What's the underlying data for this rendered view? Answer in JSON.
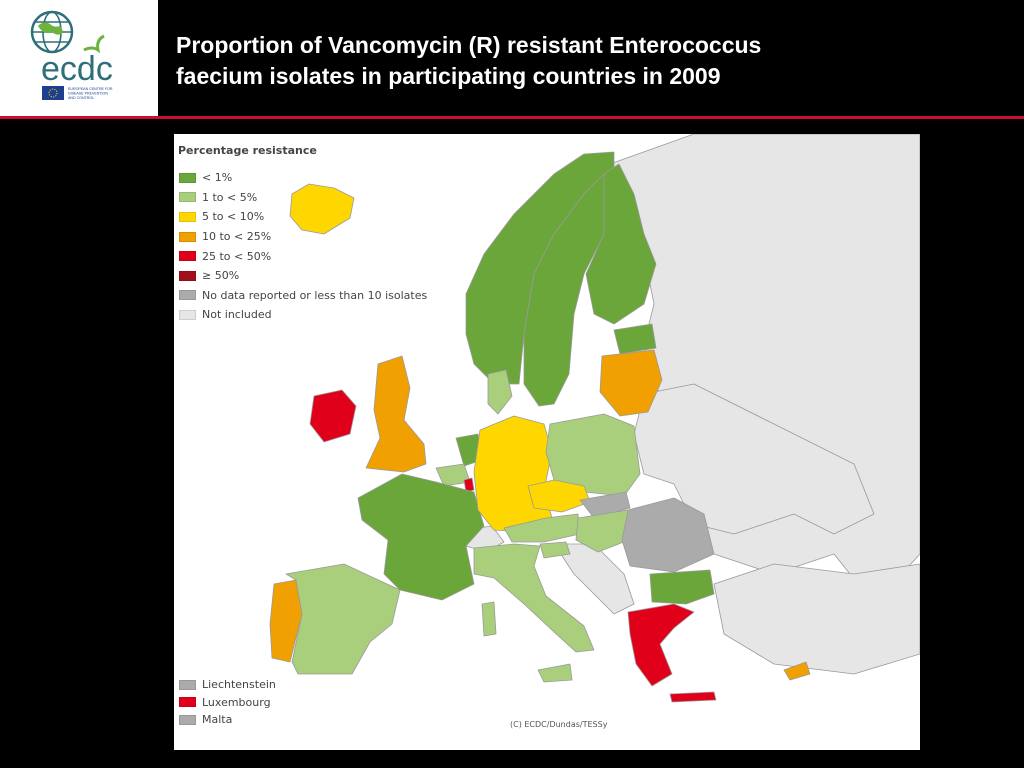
{
  "slide": {
    "title_line1": "Proportion of Vancomycin (R) resistant Enterococcus",
    "title_line2": "faecium isolates in participating countries in 2009"
  },
  "logo": {
    "text": "ecdc",
    "sub": "EUROPEAN CENTRE FOR DISEASE PREVENTION AND CONTROL"
  },
  "legend": {
    "title": "Percentage resistance",
    "items": [
      {
        "label": "< 1%",
        "color": "#6aa63a"
      },
      {
        "label": "1 to < 5%",
        "color": "#a9cf7c"
      },
      {
        "label": "5 to < 10%",
        "color": "#ffd700"
      },
      {
        "label": "10 to < 25%",
        "color": "#f0a000"
      },
      {
        "label": "25 to < 50%",
        "color": "#e0001a"
      },
      {
        "label": "≥ 50%",
        "color": "#a0101a"
      },
      {
        "label": "No data reported or less than 10 isolates",
        "color": "#ababab"
      },
      {
        "label": "Not included",
        "color": "#e6e6e6"
      }
    ]
  },
  "small_states": [
    {
      "label": "Liechtenstein",
      "color": "#ababab"
    },
    {
      "label": "Luxembourg",
      "color": "#e0001a"
    },
    {
      "label": "Malta",
      "color": "#ababab"
    }
  ],
  "credit": "(C) ECDC/Dundas/TESSy"
}
